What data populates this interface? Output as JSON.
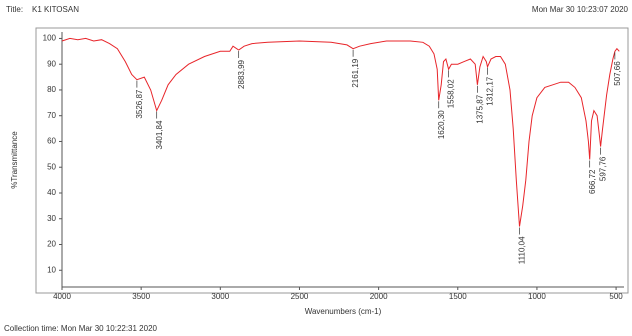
{
  "chart_data": {
    "type": "line",
    "header_label": "Title:",
    "title": "K1 KITOSAN",
    "timestamp": "Mon Mar 30 10:23:07 2020",
    "ylabel": "%Transmittance",
    "xlabel": "Wavenumbers (cm-1)",
    "footer": "Collection time: Mon Mar 30 10:22:31 2020",
    "color": "#e8252a",
    "grid": false,
    "xlim": [
      4000,
      450
    ],
    "ylim": [
      3.5,
      102.5
    ],
    "xticks": [
      4000,
      3500,
      3000,
      2500,
      2000,
      1500,
      1000,
      500
    ],
    "yticks": [
      10,
      20,
      30,
      40,
      50,
      60,
      70,
      80,
      90,
      100
    ],
    "x": [
      4000,
      3950,
      3900,
      3850,
      3800,
      3750,
      3700,
      3650,
      3600,
      3560,
      3526.87,
      3480,
      3440,
      3401.84,
      3370,
      3330,
      3280,
      3200,
      3100,
      3000,
      2940,
      2920,
      2883.99,
      2850,
      2800,
      2700,
      2500,
      2300,
      2200,
      2161.19,
      2120,
      2050,
      1950,
      1800,
      1720,
      1680,
      1650,
      1630,
      1620.3,
      1605,
      1590,
      1575,
      1558.02,
      1540,
      1500,
      1460,
      1420,
      1390,
      1375.87,
      1360,
      1340,
      1320,
      1312.17,
      1290,
      1260,
      1230,
      1200,
      1170,
      1150,
      1130,
      1110.04,
      1090,
      1070,
      1050,
      1030,
      1000,
      950,
      900,
      850,
      800,
      760,
      720,
      690,
      675,
      666.72,
      655,
      640,
      620,
      605,
      597.76,
      585,
      560,
      540,
      520,
      507.66,
      495,
      480
    ],
    "values": [
      99,
      100,
      99.5,
      100,
      99,
      99.5,
      98,
      96,
      91,
      86,
      84,
      85,
      80,
      72,
      76,
      82,
      86,
      90,
      93,
      95,
      95,
      97,
      95.5,
      97,
      98,
      98.5,
      99,
      98.5,
      97.5,
      96,
      97,
      98,
      99,
      99,
      98.5,
      97,
      94,
      88,
      76,
      82,
      91,
      92,
      88,
      90,
      90,
      91,
      92,
      90,
      82,
      89,
      93,
      91,
      89,
      92,
      93,
      93,
      90,
      80,
      65,
      45,
      27,
      35,
      45,
      60,
      70,
      77,
      81,
      82,
      83,
      83,
      81,
      77,
      68,
      60,
      53,
      68,
      72,
      70,
      62,
      58,
      65,
      78,
      86,
      92,
      95,
      96,
      95
    ],
    "annotations": [
      {
        "x": 3526.87,
        "y": 84,
        "label": "3526,87"
      },
      {
        "x": 3401.84,
        "y": 72,
        "label": "3401,84"
      },
      {
        "x": 2883.99,
        "y": 95.5,
        "label": "2883,99"
      },
      {
        "x": 2161.19,
        "y": 96,
        "label": "2161,19"
      },
      {
        "x": 1620.3,
        "y": 76,
        "label": "1620,30"
      },
      {
        "x": 1558.02,
        "y": 88,
        "label": "1558,02"
      },
      {
        "x": 1375.87,
        "y": 82,
        "label": "1375,87"
      },
      {
        "x": 1312.17,
        "y": 89,
        "label": "1312,17"
      },
      {
        "x": 1110.04,
        "y": 27,
        "label": "1110,04"
      },
      {
        "x": 666.72,
        "y": 53,
        "label": "666,72"
      },
      {
        "x": 597.76,
        "y": 58,
        "label": "597,76"
      },
      {
        "x": 507.66,
        "y": 95,
        "label": "507,66"
      }
    ]
  }
}
